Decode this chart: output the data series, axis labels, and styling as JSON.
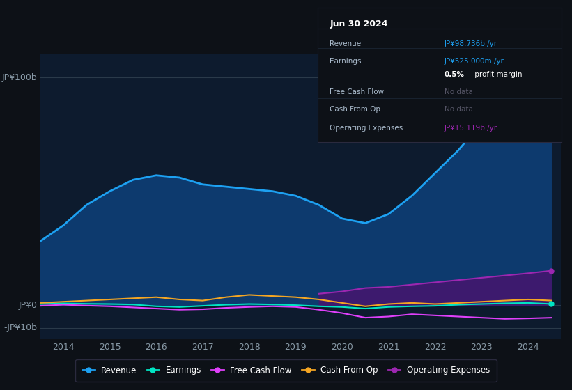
{
  "bg_color": "#0d1117",
  "plot_bg_color": "#0d1b2e",
  "ylim": [
    -15,
    110
  ],
  "xlim": [
    2013.5,
    2024.7
  ],
  "xticks": [
    2014,
    2015,
    2016,
    2017,
    2018,
    2019,
    2020,
    2021,
    2022,
    2023,
    2024
  ],
  "revenue": {
    "years": [
      2013.5,
      2014.0,
      2014.5,
      2015.0,
      2015.5,
      2016.0,
      2016.5,
      2017.0,
      2017.5,
      2018.0,
      2018.5,
      2019.0,
      2019.5,
      2020.0,
      2020.5,
      2021.0,
      2021.5,
      2022.0,
      2022.5,
      2023.0,
      2023.5,
      2024.0,
      2024.5
    ],
    "values": [
      28,
      35,
      44,
      50,
      55,
      57,
      56,
      53,
      52,
      51,
      50,
      48,
      44,
      38,
      36,
      40,
      48,
      58,
      68,
      80,
      88,
      96,
      98.736
    ],
    "color": "#1da1f2",
    "fill_color": "#0d3a6e"
  },
  "earnings": {
    "years": [
      2013.5,
      2014.0,
      2014.5,
      2015.0,
      2015.5,
      2016.0,
      2016.5,
      2017.0,
      2017.5,
      2018.0,
      2018.5,
      2019.0,
      2019.5,
      2020.0,
      2020.5,
      2021.0,
      2021.5,
      2022.0,
      2022.5,
      2023.0,
      2023.5,
      2024.0,
      2024.5
    ],
    "values": [
      0.5,
      0.8,
      0.6,
      0.5,
      0.3,
      -0.5,
      -0.8,
      -0.3,
      0.2,
      0.5,
      0.3,
      0.0,
      -0.5,
      -0.8,
      -1.5,
      -0.8,
      -0.5,
      -0.3,
      0.2,
      0.5,
      0.8,
      1.0,
      0.525
    ],
    "color": "#00e5c3"
  },
  "free_cash_flow": {
    "years": [
      2013.5,
      2014.0,
      2014.5,
      2015.0,
      2015.5,
      2016.0,
      2016.5,
      2017.0,
      2017.5,
      2018.0,
      2018.5,
      2019.0,
      2019.5,
      2020.0,
      2020.5,
      2021.0,
      2021.5,
      2022.0,
      2022.5,
      2023.0,
      2023.5,
      2024.0,
      2024.5
    ],
    "values": [
      -0.3,
      0.2,
      -0.2,
      -0.5,
      -1.0,
      -1.5,
      -2.0,
      -1.8,
      -1.2,
      -0.8,
      -0.5,
      -0.8,
      -2.0,
      -3.5,
      -5.5,
      -5.0,
      -4.0,
      -4.5,
      -5.0,
      -5.5,
      -6.0,
      -5.8,
      -5.5
    ],
    "color": "#e040fb"
  },
  "cash_from_op": {
    "years": [
      2013.5,
      2014.0,
      2014.5,
      2015.0,
      2015.5,
      2016.0,
      2016.5,
      2017.0,
      2017.5,
      2018.0,
      2018.5,
      2019.0,
      2019.5,
      2020.0,
      2020.5,
      2021.0,
      2021.5,
      2022.0,
      2022.5,
      2023.0,
      2023.5,
      2024.0,
      2024.5
    ],
    "values": [
      1.0,
      1.5,
      2.0,
      2.5,
      3.0,
      3.5,
      2.5,
      2.0,
      3.5,
      4.5,
      4.0,
      3.5,
      2.5,
      1.0,
      -0.5,
      0.5,
      1.0,
      0.5,
      1.0,
      1.5,
      2.0,
      2.5,
      2.0
    ],
    "color": "#f5a623"
  },
  "operating_expenses": {
    "years": [
      2019.5,
      2020.0,
      2020.5,
      2021.0,
      2021.5,
      2022.0,
      2022.5,
      2023.0,
      2023.5,
      2024.0,
      2024.5
    ],
    "values": [
      5.0,
      6.0,
      7.5,
      8.0,
      9.0,
      10.0,
      11.0,
      12.0,
      13.0,
      14.0,
      15.119
    ],
    "color": "#9c27b0",
    "fill_color": "#3d1a6e"
  },
  "tooltip": {
    "title": "Jun 30 2024",
    "bg_color": "#0d1117",
    "border_color": "#2a2a3e"
  },
  "legend": [
    {
      "label": "Revenue",
      "color": "#1da1f2"
    },
    {
      "label": "Earnings",
      "color": "#00e5c3"
    },
    {
      "label": "Free Cash Flow",
      "color": "#e040fb"
    },
    {
      "label": "Cash From Op",
      "color": "#f5a623"
    },
    {
      "label": "Operating Expenses",
      "color": "#9c27b0"
    }
  ],
  "text_color": "#8899a6",
  "divider_color": "#1e2a3a",
  "hline_color": "#2a3a4a"
}
